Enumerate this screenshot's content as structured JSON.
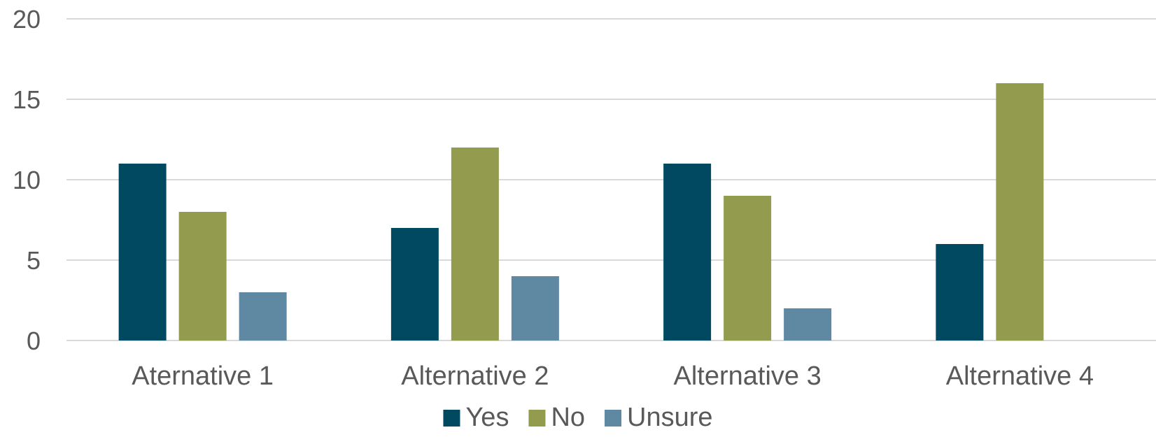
{
  "chart_data": {
    "type": "bar",
    "categories": [
      "Aternative 1",
      "Alternative 2",
      "Alternative 3",
      "Alternative 4"
    ],
    "series": [
      {
        "name": "Yes",
        "values": [
          11,
          7,
          11,
          6
        ],
        "color": "#004960"
      },
      {
        "name": "No",
        "values": [
          8,
          12,
          9,
          16
        ],
        "color": "#939b4f"
      },
      {
        "name": "Unsure",
        "values": [
          3,
          4,
          2,
          0
        ],
        "color": "#5f88a2"
      }
    ],
    "ylim": [
      0,
      20
    ],
    "yticks": [
      0,
      5,
      10,
      15,
      20
    ],
    "grid": true,
    "legend_position": "bottom"
  }
}
